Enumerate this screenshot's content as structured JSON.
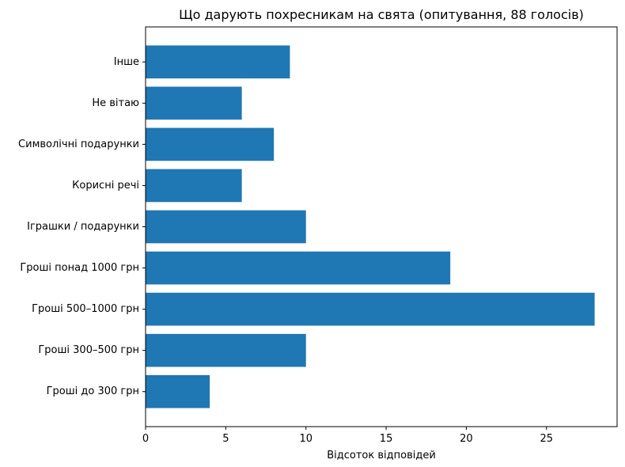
{
  "chart_data": {
    "type": "bar",
    "orientation": "horizontal",
    "title": "Що дарують похресникам на свята (опитування, 88 голосів)",
    "xlabel": "Відсоток відповідей",
    "ylabel": "",
    "categories": [
      "Гроші до 300 грн",
      "Гроші 300–500 грн",
      "Гроші 500–1000 грн",
      "Гроші понад 1000 грн",
      "Іграшки / подарунки",
      "Корисні речі",
      "Символічні подарунки",
      "Не вітаю",
      "Інше"
    ],
    "values": [
      4,
      10,
      28,
      19,
      10,
      6,
      8,
      6,
      9
    ],
    "xlim": [
      0,
      29.4
    ],
    "xticks": [
      0,
      5,
      10,
      15,
      20,
      25
    ],
    "bar_color": "#1f77b4",
    "grid": false,
    "legend": "none"
  }
}
